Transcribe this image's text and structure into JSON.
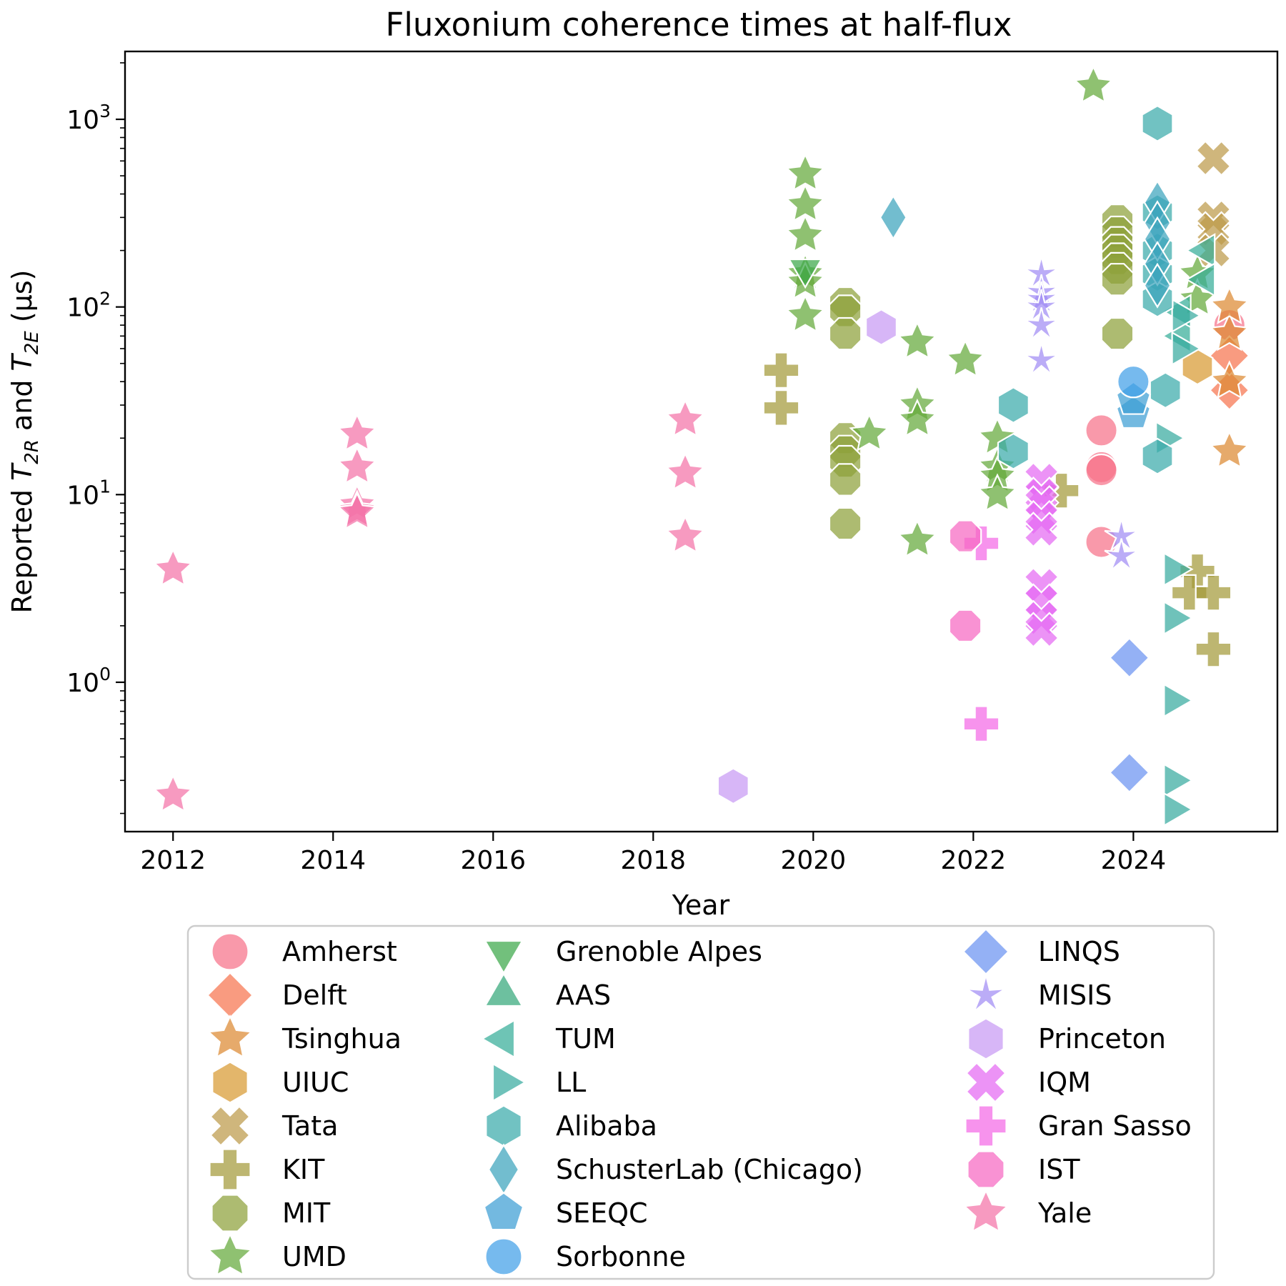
{
  "chart_data": {
    "type": "scatter",
    "title": "Fluxonium coherence times at half-flux",
    "xlabel": "Year",
    "ylabel": {
      "prefix": "Reported ",
      "sym1": "T",
      "sub1": "2R",
      "mid": " and ",
      "sym2": "T",
      "sub2": "2E",
      "suffix": " (µs)"
    },
    "xlim": [
      2011.4,
      2025.8
    ],
    "ylim": [
      0.16,
      2300
    ],
    "yscale": "log",
    "x_ticks": [
      "2012",
      "2014",
      "2016",
      "2018",
      "2020",
      "2022",
      "2024"
    ],
    "y_ticks": [
      {
        "value": 1,
        "base": "10",
        "exp": "0"
      },
      {
        "value": 10,
        "base": "10",
        "exp": "1"
      },
      {
        "value": 100,
        "base": "10",
        "exp": "2"
      },
      {
        "value": 1000,
        "base": "10",
        "exp": "3"
      }
    ],
    "grid": false,
    "legend_position": "below",
    "series": [
      {
        "name": "Amherst",
        "marker": "circle",
        "color": "#f77189",
        "points": [
          [
            2023.6,
            22
          ],
          [
            2023.6,
            14
          ],
          [
            2023.6,
            13.5
          ],
          [
            2023.6,
            5.6
          ],
          [
            2025.2,
            80
          ]
        ]
      },
      {
        "name": "Delft",
        "marker": "diamond",
        "color": "#f7754f",
        "points": [
          [
            2025.2,
            36
          ],
          [
            2025.2,
            55
          ]
        ]
      },
      {
        "name": "Tsinghua",
        "marker": "star",
        "color": "#dc8932",
        "points": [
          [
            2025.2,
            17
          ],
          [
            2025.2,
            40
          ],
          [
            2025.2,
            72
          ],
          [
            2025.2,
            100
          ]
        ]
      },
      {
        "name": "UIUC",
        "marker": "hexagon",
        "color": "#d89a32",
        "points": [
          [
            2024.8,
            48
          ]
        ]
      },
      {
        "name": "Tata",
        "marker": "x",
        "color": "#bc9a4a",
        "points": [
          [
            2025.0,
            620
          ],
          [
            2025.0,
            300
          ],
          [
            2025.0,
            260
          ],
          [
            2025.0,
            200
          ]
        ]
      },
      {
        "name": "KIT",
        "marker": "plus",
        "color": "#a39a3a",
        "points": [
          [
            2019.6,
            46
          ],
          [
            2019.6,
            29
          ],
          [
            2023.1,
            10.5
          ],
          [
            2024.8,
            3.9
          ],
          [
            2024.7,
            3
          ],
          [
            2025.0,
            3
          ],
          [
            2025.0,
            1.5
          ]
        ]
      },
      {
        "name": "MIT",
        "marker": "octagon",
        "color": "#8ea13a",
        "points": [
          [
            2020.4,
            105
          ],
          [
            2020.4,
            95
          ],
          [
            2020.4,
            72
          ],
          [
            2020.4,
            20
          ],
          [
            2020.4,
            17
          ],
          [
            2020.4,
            15
          ],
          [
            2020.4,
            12
          ],
          [
            2020.4,
            7
          ],
          [
            2023.8,
            290
          ],
          [
            2023.8,
            250
          ],
          [
            2023.8,
            220
          ],
          [
            2023.8,
            200
          ],
          [
            2023.8,
            180
          ],
          [
            2023.8,
            160
          ],
          [
            2023.8,
            140
          ],
          [
            2023.8,
            72
          ]
        ]
      },
      {
        "name": "UMD",
        "marker": "star",
        "color": "#64a93a",
        "points": [
          [
            2023.5,
            1500
          ],
          [
            2019.9,
            510
          ],
          [
            2019.9,
            350
          ],
          [
            2019.9,
            240
          ],
          [
            2019.9,
            150
          ],
          [
            2019.9,
            135
          ],
          [
            2019.9,
            90
          ],
          [
            2020.7,
            21
          ],
          [
            2021.3,
            65
          ],
          [
            2021.3,
            30
          ],
          [
            2021.3,
            25
          ],
          [
            2021.3,
            5.7
          ],
          [
            2021.9,
            52
          ],
          [
            2022.3,
            20
          ],
          [
            2022.3,
            14
          ],
          [
            2022.3,
            12.5
          ],
          [
            2022.3,
            10
          ],
          [
            2024.8,
            150
          ],
          [
            2024.8,
            110
          ]
        ]
      },
      {
        "name": "Grenoble Alpes",
        "marker": "triangle-down",
        "color": "#3ba84a",
        "points": [
          [
            2019.9,
            160
          ]
        ]
      },
      {
        "name": "AAS",
        "marker": "triangle-up",
        "color": "#35a87a",
        "points": []
      },
      {
        "name": "TUM",
        "marker": "triangle-left",
        "color": "#36ad98",
        "points": [
          [
            2024.6,
            70
          ],
          [
            2024.6,
            95
          ],
          [
            2024.9,
            200
          ],
          [
            2024.9,
            140
          ]
        ]
      },
      {
        "name": "LL",
        "marker": "triangle-right",
        "color": "#38ab9f",
        "points": [
          [
            2024.5,
            4
          ],
          [
            2024.5,
            2.2
          ],
          [
            2024.5,
            0.8
          ],
          [
            2024.5,
            0.3
          ],
          [
            2024.5,
            0.21
          ],
          [
            2024.4,
            20
          ],
          [
            2024.6,
            90
          ],
          [
            2024.6,
            60
          ]
        ]
      },
      {
        "name": "Alibaba",
        "marker": "hexagon",
        "color": "#3aaaaa",
        "points": [
          [
            2024.3,
            950
          ],
          [
            2022.5,
            30
          ],
          [
            2022.5,
            17
          ],
          [
            2024.4,
            36
          ],
          [
            2024.3,
            16
          ],
          [
            2024.3,
            320
          ],
          [
            2024.3,
            200
          ],
          [
            2024.3,
            150
          ],
          [
            2024.3,
            110
          ]
        ]
      },
      {
        "name": "SchusterLab (Chicago)",
        "marker": "diamond-tall",
        "color": "#3ba4bc",
        "points": [
          [
            2021.0,
            300
          ],
          [
            2024.3,
            360
          ],
          [
            2024.3,
            280
          ],
          [
            2024.3,
            230
          ],
          [
            2024.3,
            170
          ],
          [
            2024.3,
            130
          ]
        ]
      },
      {
        "name": "SEEQC",
        "marker": "pentagon",
        "color": "#3d9ed4",
        "points": [
          [
            2024.0,
            27
          ],
          [
            2024.0,
            32
          ]
        ]
      },
      {
        "name": "Sorbonne",
        "marker": "circle",
        "color": "#41a0e8",
        "points": [
          [
            2024.0,
            40
          ]
        ]
      },
      {
        "name": "LINQS",
        "marker": "diamond",
        "color": "#6b93f1",
        "points": [
          [
            2023.95,
            1.35
          ],
          [
            2023.95,
            0.33
          ]
        ]
      },
      {
        "name": "MISIS",
        "marker": "star-thin",
        "color": "#a18cf4",
        "points": [
          [
            2022.85,
            150
          ],
          [
            2022.85,
            120
          ],
          [
            2022.85,
            110
          ],
          [
            2022.85,
            100
          ],
          [
            2022.85,
            80
          ],
          [
            2022.85,
            52
          ],
          [
            2023.85,
            6
          ],
          [
            2023.85,
            4.7
          ]
        ]
      },
      {
        "name": "Princeton",
        "marker": "hexagon",
        "color": "#c79af4",
        "points": [
          [
            2020.85,
            78
          ],
          [
            2019.0,
            0.28
          ]
        ]
      },
      {
        "name": "IQM",
        "marker": "x",
        "color": "#e46af2",
        "points": [
          [
            2022.85,
            12
          ],
          [
            2022.85,
            10
          ],
          [
            2022.85,
            9
          ],
          [
            2022.85,
            7.5
          ],
          [
            2022.85,
            6.5
          ],
          [
            2022.85,
            3.3
          ],
          [
            2022.85,
            2.7
          ],
          [
            2022.85,
            2.2
          ],
          [
            2022.85,
            1.9
          ]
        ]
      },
      {
        "name": "Gran Sasso",
        "marker": "plus",
        "color": "#f46ae6",
        "points": [
          [
            2022.1,
            5.5
          ],
          [
            2022.1,
            0.6
          ]
        ]
      },
      {
        "name": "IST",
        "marker": "octagon",
        "color": "#f668c2",
        "points": [
          [
            2021.9,
            6
          ],
          [
            2021.9,
            2
          ]
        ]
      },
      {
        "name": "Yale",
        "marker": "star",
        "color": "#f473a8",
        "points": [
          [
            2012.0,
            4
          ],
          [
            2012.0,
            0.25
          ],
          [
            2014.3,
            21
          ],
          [
            2014.3,
            14
          ],
          [
            2014.3,
            8.8
          ],
          [
            2014.3,
            8.2
          ],
          [
            2014.3,
            8.0
          ],
          [
            2018.4,
            25
          ],
          [
            2018.4,
            13
          ],
          [
            2018.4,
            6
          ]
        ]
      }
    ]
  }
}
